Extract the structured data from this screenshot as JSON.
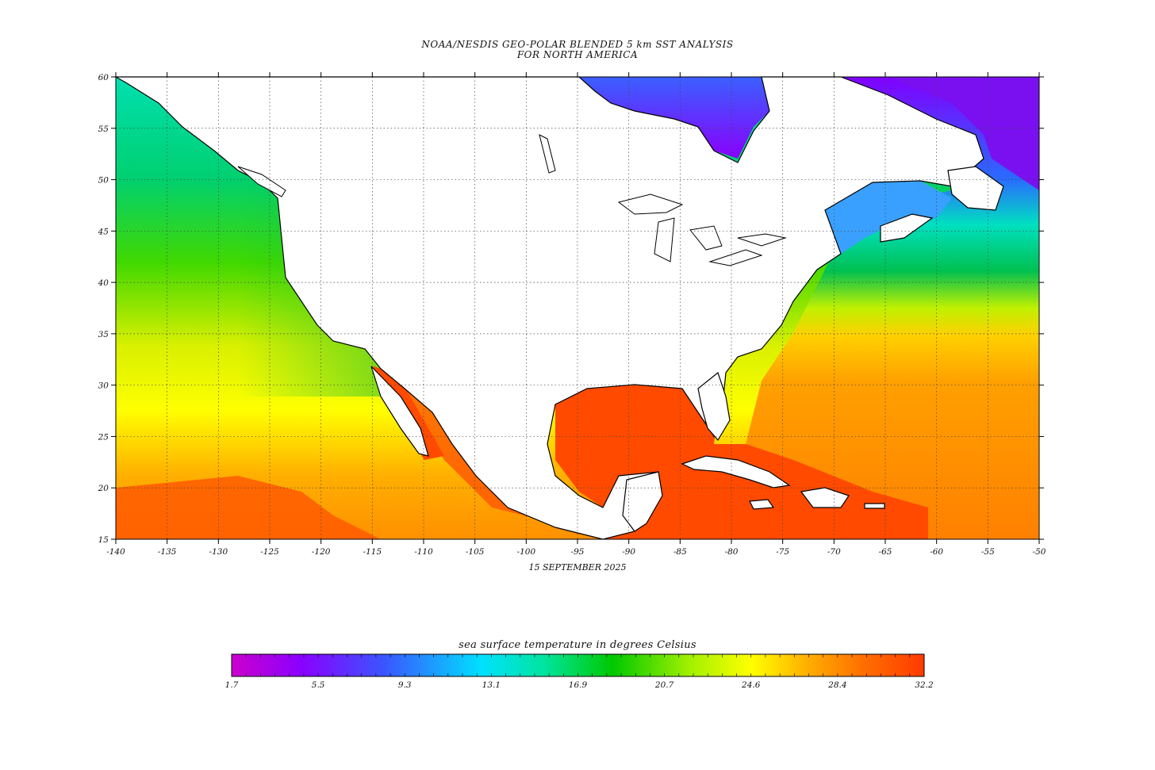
{
  "title": {
    "line1": "NOAA/NESDIS GEO-POLAR BLENDED 5 km SST ANALYSIS",
    "line2": "FOR NORTH AMERICA"
  },
  "date": "15 SEPTEMBER 2025",
  "colorbar": {
    "title": "sea surface temperature in degrees Celsius",
    "tick_labels": [
      "1.7",
      "5.5",
      "9.3",
      "13.1",
      "16.9",
      "20.7",
      "24.6",
      "28.4",
      "32.2"
    ],
    "colors": [
      "#cc00cc",
      "#8a00ff",
      "#3a55ff",
      "#00e0ff",
      "#00e5a0",
      "#00c800",
      "#a0f000",
      "#ffff00",
      "#ffb000",
      "#ff7000",
      "#ff3a00"
    ]
  },
  "map": {
    "lat_labels": [
      "15",
      "20",
      "25",
      "30",
      "35",
      "40",
      "45",
      "50",
      "55",
      "60"
    ],
    "lon_labels": [
      "-140",
      "-135",
      "-130",
      "-125",
      "-120",
      "-115",
      "-110",
      "-105",
      "-100",
      "-95",
      "-90",
      "-85",
      "-80",
      "-75",
      "-70",
      "-65",
      "-60",
      "-55",
      "-50"
    ],
    "lat_range": [
      15,
      60
    ],
    "lon_range": [
      -140,
      -50
    ],
    "land_color": "#ffffff",
    "grid": "dotted"
  }
}
